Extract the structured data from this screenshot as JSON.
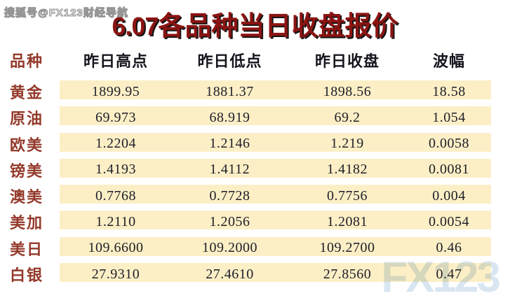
{
  "watermarks": {
    "sohu": "搜狐号@FX123财经导航",
    "fx123": "FX123"
  },
  "title": {
    "number": "6.07",
    "text": "各品种当日收盘报价"
  },
  "chart_data": {
    "type": "table",
    "title": "6.07各品种当日收盘报价",
    "columns": [
      "品种",
      "昨日高点",
      "昨日低点",
      "昨日收盘",
      "波幅"
    ],
    "rows": [
      {
        "name": "黄金",
        "high": "1899.95",
        "low": "1881.37",
        "close": "1898.56",
        "range": "18.58"
      },
      {
        "name": "原油",
        "high": "69.973",
        "low": "68.919",
        "close": "69.2",
        "range": "1.054"
      },
      {
        "name": "欧美",
        "high": "1.2204",
        "low": "1.2146",
        "close": "1.219",
        "range": "0.0058"
      },
      {
        "name": "镑美",
        "high": "1.4193",
        "low": "1.4112",
        "close": "1.4182",
        "range": "0.0081"
      },
      {
        "name": "澳美",
        "high": "0.7768",
        "low": "0.7728",
        "close": "0.7756",
        "range": "0.004"
      },
      {
        "name": "美加",
        "high": "1.2110",
        "low": "1.2056",
        "close": "1.2081",
        "range": "0.0054"
      },
      {
        "name": "美日",
        "high": "109.6600",
        "low": "109.2000",
        "close": "109.2700",
        "range": "0.46"
      },
      {
        "name": "白银",
        "high": "27.9310",
        "low": "27.4610",
        "close": "27.8560",
        "range": "0.47"
      }
    ]
  },
  "colors": {
    "stripe": "#fcefc6",
    "titleRed": "#8b1412",
    "labelRed": "#93392a",
    "headerDark": "#15151e",
    "numberDark": "#1e1e28",
    "watermarkBlue": "#d9e6f2"
  }
}
